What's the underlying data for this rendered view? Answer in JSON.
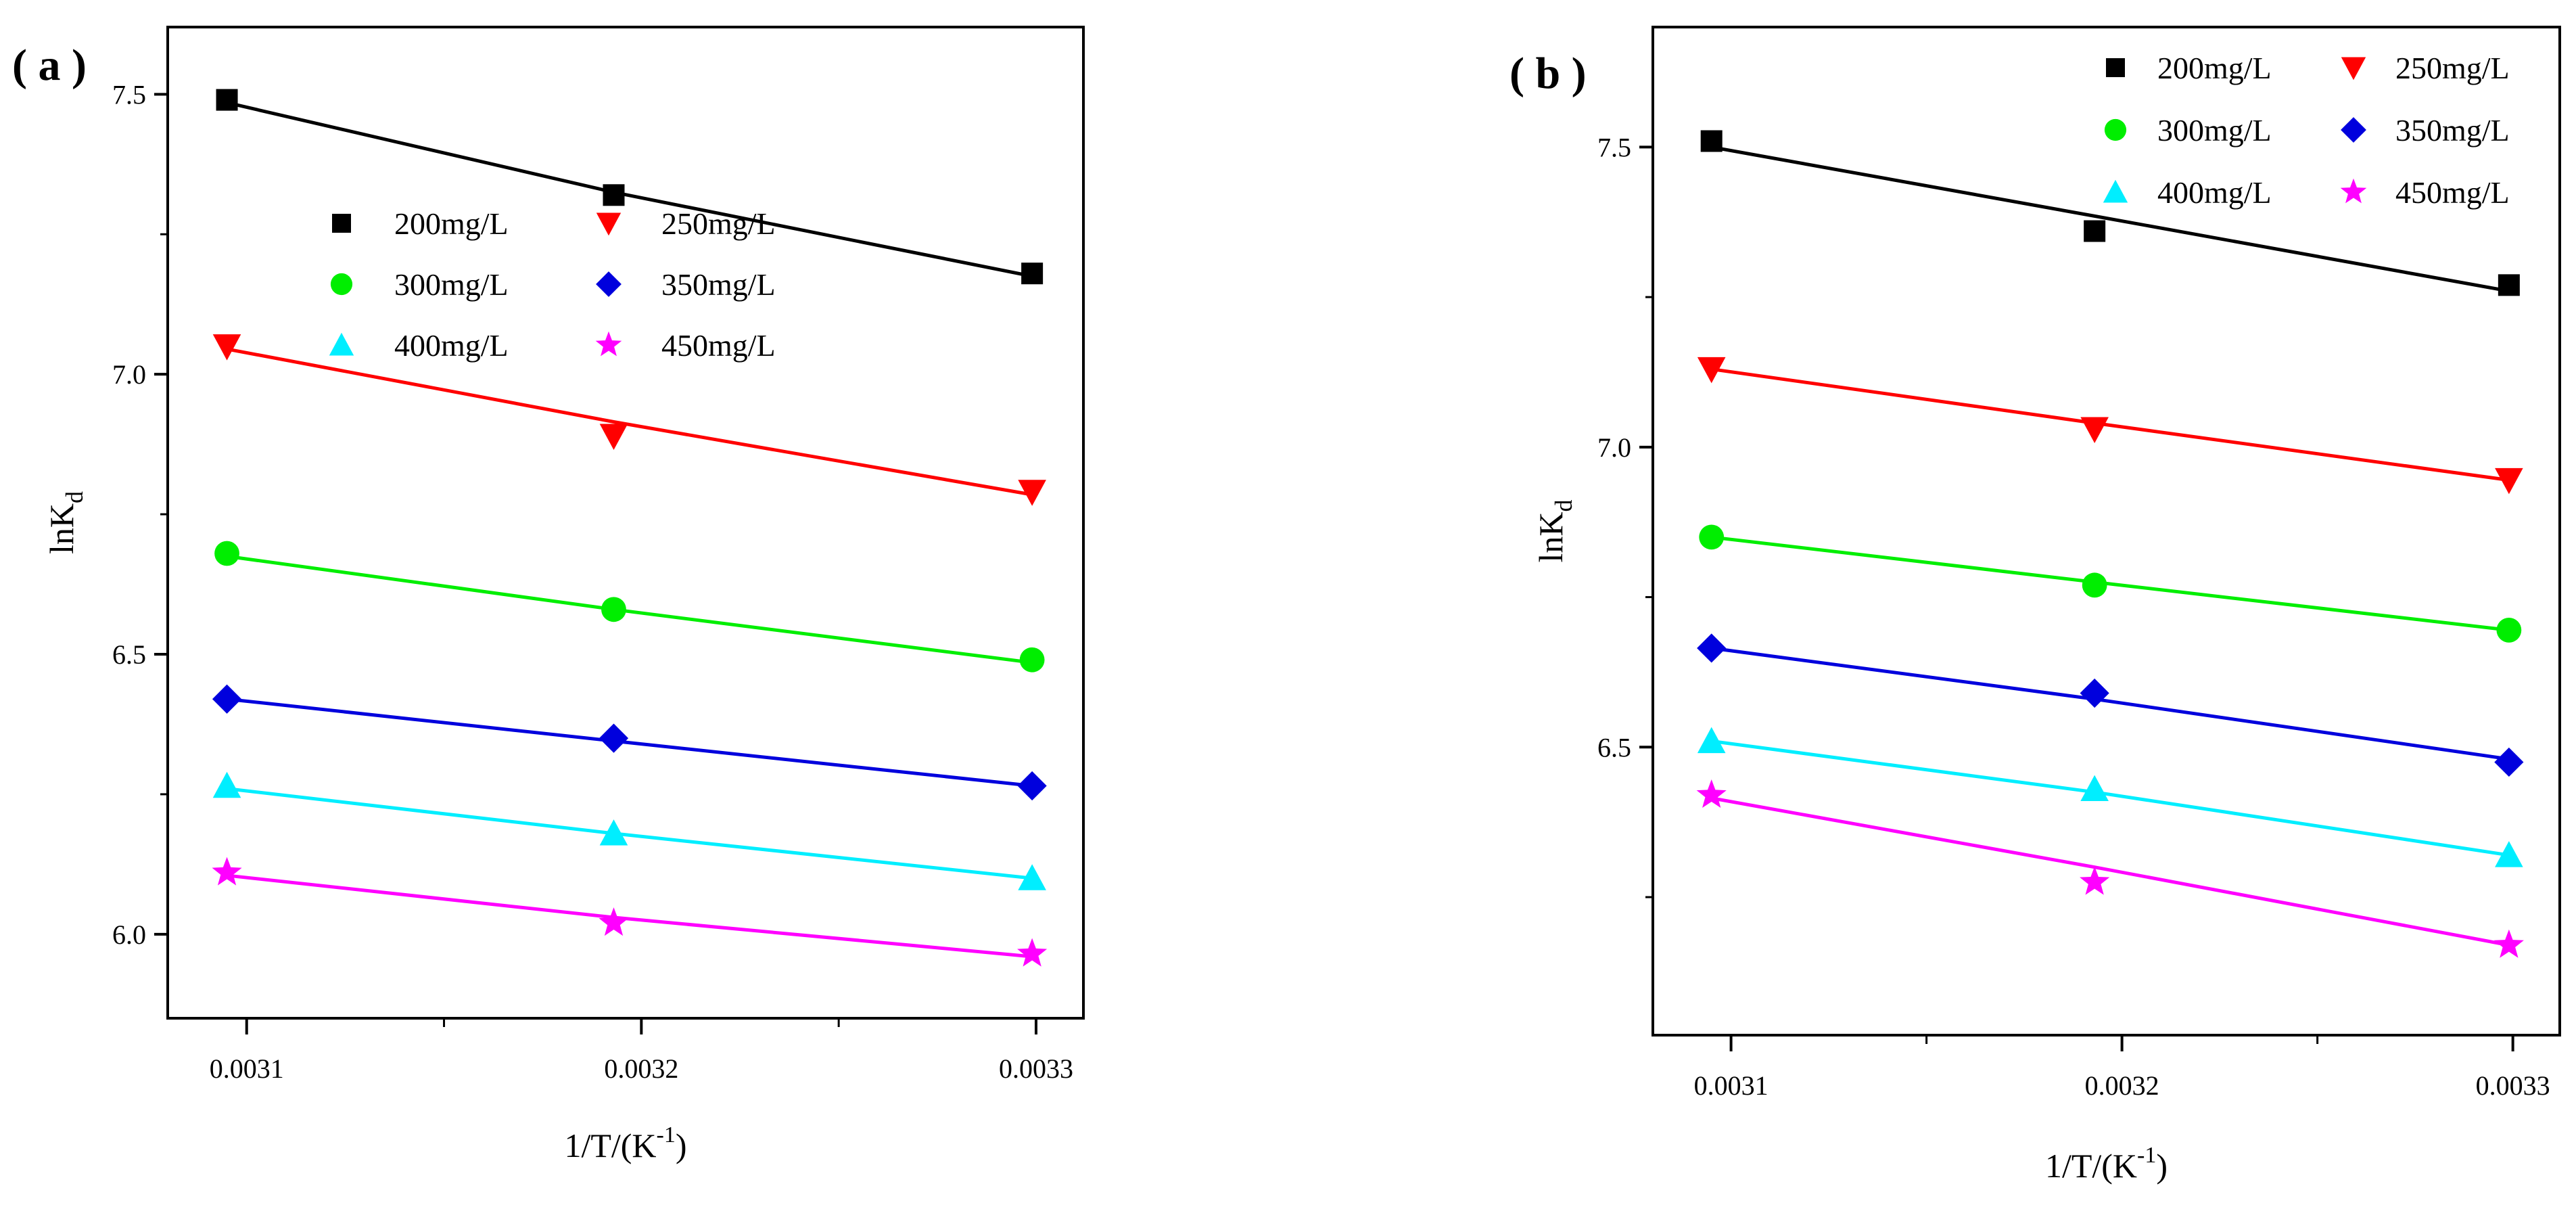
{
  "chart_data": [
    {
      "type": "scatter",
      "panel_label": "( a )",
      "xlabel": "1/T/(K",
      "xlabel_sup": "-1",
      "xlabel_close": ")",
      "ylabel": "lnK",
      "ylabel_sub": "d",
      "xlim": [
        0.00308,
        0.003312
      ],
      "ylim": [
        5.85,
        7.62
      ],
      "xticks": [
        0.0031,
        0.0032,
        0.0033
      ],
      "xtick_labels": [
        "0.0031",
        "0.0032",
        "0.0033"
      ],
      "yticks": [
        6.0,
        6.5,
        7.0,
        7.5
      ],
      "ytick_labels": [
        "6.0",
        "6.5",
        "7.0",
        "7.5"
      ],
      "legend_position": "upper-middle",
      "x": [
        0.003095,
        0.003193,
        0.003299
      ],
      "series": [
        {
          "name": "200mg/L",
          "marker": "square",
          "color": "#000000",
          "values": [
            7.49,
            7.32,
            7.18
          ],
          "fit": [
            7.485,
            7.325,
            7.175
          ]
        },
        {
          "name": "250mg/L",
          "marker": "triangle-down",
          "color": "#ff0000",
          "values": [
            7.05,
            6.89,
            6.79
          ],
          "fit": [
            7.045,
            6.915,
            6.785
          ]
        },
        {
          "name": "300mg/L",
          "marker": "circle",
          "color": "#00ee00",
          "values": [
            6.68,
            6.58,
            6.49
          ],
          "fit": [
            6.675,
            6.58,
            6.485
          ]
        },
        {
          "name": "350mg/L",
          "marker": "diamond",
          "color": "#0000dd",
          "values": [
            6.42,
            6.35,
            6.265
          ],
          "fit": [
            6.42,
            6.345,
            6.265
          ]
        },
        {
          "name": "400mg/L",
          "marker": "triangle-up",
          "color": "#00eeff",
          "values": [
            6.265,
            6.18,
            6.1
          ],
          "fit": [
            6.26,
            6.18,
            6.1
          ]
        },
        {
          "name": "450mg/L",
          "marker": "star",
          "color": "#ff00ff",
          "values": [
            6.11,
            6.02,
            5.965
          ],
          "fit": [
            6.105,
            6.03,
            5.96
          ]
        }
      ]
    },
    {
      "type": "scatter",
      "panel_label": "( b )",
      "xlabel": "1/T/(K",
      "xlabel_sup": "-1",
      "xlabel_close": ")",
      "ylabel": "lnK",
      "ylabel_sub": "d",
      "xlim": [
        0.00308,
        0.003312
      ],
      "ylim": [
        6.02,
        7.7
      ],
      "xticks": [
        0.0031,
        0.0032,
        0.0033
      ],
      "xtick_labels": [
        "0.0031",
        "0.0032",
        "0.0033"
      ],
      "yticks": [
        6.5,
        7.0,
        7.5
      ],
      "ytick_labels": [
        "6.5",
        "7.0",
        "7.5"
      ],
      "legend_position": "top-right",
      "x": [
        0.003095,
        0.003193,
        0.003299
      ],
      "series": [
        {
          "name": "200mg/L",
          "marker": "square",
          "color": "#000000",
          "values": [
            7.51,
            7.36,
            7.27
          ],
          "fit": [
            7.5,
            7.385,
            7.26
          ]
        },
        {
          "name": "250mg/L",
          "marker": "triangle-down",
          "color": "#ff0000",
          "values": [
            7.13,
            7.03,
            6.945
          ],
          "fit": [
            7.13,
            7.04,
            6.945
          ]
        },
        {
          "name": "300mg/L",
          "marker": "circle",
          "color": "#00ee00",
          "values": [
            6.85,
            6.77,
            6.695
          ],
          "fit": [
            6.85,
            6.775,
            6.695
          ]
        },
        {
          "name": "350mg/L",
          "marker": "diamond",
          "color": "#0000dd",
          "values": [
            6.665,
            6.59,
            6.475
          ],
          "fit": [
            6.665,
            6.58,
            6.48
          ]
        },
        {
          "name": "400mg/L",
          "marker": "triangle-up",
          "color": "#00eeff",
          "values": [
            6.51,
            6.43,
            6.32
          ],
          "fit": [
            6.51,
            6.425,
            6.32
          ]
        },
        {
          "name": "450mg/L",
          "marker": "star",
          "color": "#ff00ff",
          "values": [
            6.42,
            6.275,
            6.17
          ],
          "fit": [
            6.415,
            6.3,
            6.17
          ]
        }
      ]
    }
  ]
}
